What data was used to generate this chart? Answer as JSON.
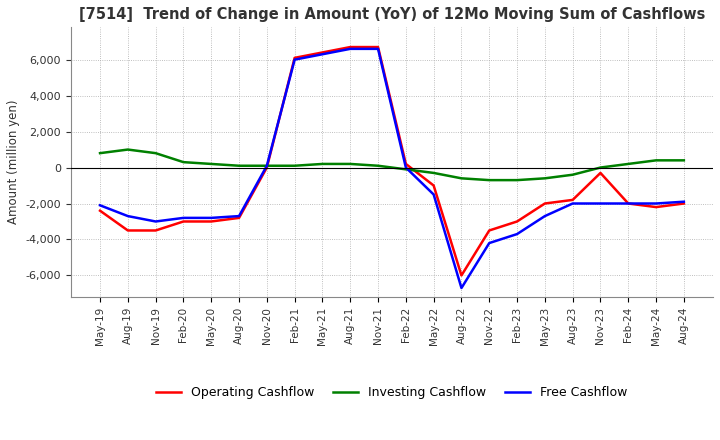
{
  "title": "[7514]  Trend of Change in Amount (YoY) of 12Mo Moving Sum of Cashflows",
  "ylabel": "Amount (million yen)",
  "ylim": [
    -7200,
    7800
  ],
  "yticks": [
    -6000,
    -4000,
    -2000,
    0,
    2000,
    4000,
    6000
  ],
  "x_labels": [
    "May-19",
    "Aug-19",
    "Nov-19",
    "Feb-20",
    "May-20",
    "Aug-20",
    "Nov-20",
    "Feb-21",
    "May-21",
    "Aug-21",
    "Nov-21",
    "Feb-22",
    "May-22",
    "Aug-22",
    "Nov-22",
    "Feb-23",
    "May-23",
    "Aug-23",
    "Nov-23",
    "Feb-24",
    "May-24",
    "Aug-24"
  ],
  "operating": [
    -2400,
    -3500,
    -3500,
    -3000,
    -3000,
    -2800,
    0,
    6100,
    6400,
    6700,
    6700,
    200,
    -1000,
    -6000,
    -3500,
    -3000,
    -2000,
    -1800,
    -300,
    -2000,
    -2200,
    -2000
  ],
  "investing": [
    800,
    1000,
    800,
    300,
    200,
    100,
    100,
    100,
    200,
    200,
    100,
    -100,
    -300,
    -600,
    -700,
    -700,
    -600,
    -400,
    0,
    200,
    400,
    400
  ],
  "free": [
    -2100,
    -2700,
    -3000,
    -2800,
    -2800,
    -2700,
    100,
    6000,
    6300,
    6600,
    6600,
    0,
    -1500,
    -6700,
    -4200,
    -3700,
    -2700,
    -2000,
    -2000,
    -2000,
    -2000,
    -1900
  ],
  "operating_color": "#ff0000",
  "investing_color": "#008000",
  "free_color": "#0000ff",
  "bg_color": "#ffffff",
  "grid_color": "#aaaaaa"
}
